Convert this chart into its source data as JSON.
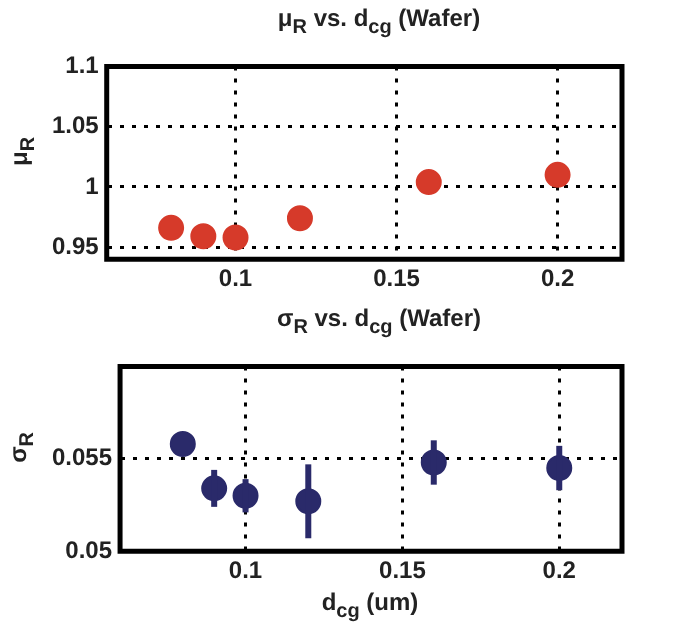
{
  "chart_data": [
    {
      "type": "scatter",
      "title": "μ$_{R}$ vs. d$_{cg}$ (Wafer)",
      "ylabel": "μ$_{R}$",
      "x": [
        0.08,
        0.09,
        0.1,
        0.12,
        0.16,
        0.2
      ],
      "values": [
        0.966,
        0.959,
        0.958,
        0.974,
        1.004,
        1.01
      ],
      "color": "#d63a2a",
      "xlim": [
        0.06,
        0.22
      ],
      "ylim": [
        0.94,
        1.1
      ],
      "xticks": [
        0.1,
        0.15,
        0.2
      ],
      "yticks": [
        0.95,
        1,
        1.05,
        1.1
      ],
      "grid": true,
      "marker": "circle"
    },
    {
      "type": "scatter",
      "title": "σ$_{R}$ vs. d$_{cg}$ (Wafer)",
      "ylabel": "σ$_{R}$",
      "xlabel": "d$_{cg}$ (um)",
      "x": [
        0.08,
        0.09,
        0.1,
        0.12,
        0.16,
        0.2
      ],
      "values": [
        0.0558,
        0.0534,
        0.053,
        0.0527,
        0.0548,
        0.0545
      ],
      "errors": [
        null,
        0.001,
        0.0009,
        0.002,
        0.0012,
        0.0012
      ],
      "color": "#2a2a6a",
      "xlim": [
        0.06,
        0.22
      ],
      "ylim": [
        0.05,
        0.06
      ],
      "xticks": [
        0.1,
        0.15,
        0.2
      ],
      "yticks": [
        0.05,
        0.055
      ],
      "grid": true,
      "marker": "circle"
    }
  ]
}
